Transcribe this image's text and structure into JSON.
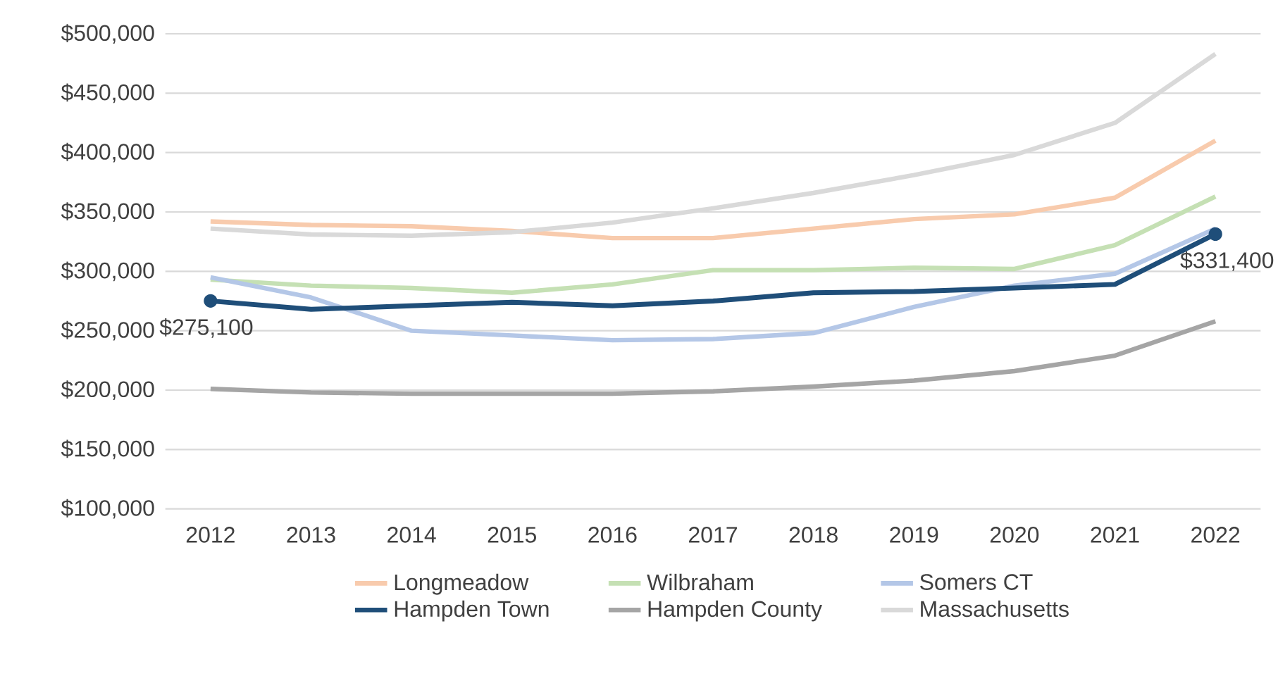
{
  "chart_data": {
    "type": "line",
    "categories": [
      "2012",
      "2013",
      "2014",
      "2015",
      "2016",
      "2017",
      "2018",
      "2019",
      "2020",
      "2021",
      "2022"
    ],
    "series": [
      {
        "name": "Longmeadow",
        "color": "#f8cbad",
        "values": [
          342000,
          339000,
          338000,
          334000,
          328000,
          328000,
          336000,
          344000,
          348000,
          362000,
          410000
        ]
      },
      {
        "name": "Wilbraham",
        "color": "#c5e0b4",
        "values": [
          293000,
          288000,
          286000,
          282000,
          289000,
          301000,
          301000,
          303000,
          302000,
          322000,
          363000
        ]
      },
      {
        "name": "Somers CT",
        "color": "#b4c7e7",
        "values": [
          295000,
          278000,
          250000,
          246000,
          242000,
          243000,
          248000,
          270000,
          288000,
          298000,
          336000
        ]
      },
      {
        "name": "Hampden Town",
        "color": "#1f4e79",
        "values": [
          275100,
          268000,
          271000,
          274000,
          271000,
          275000,
          282000,
          283000,
          286000,
          289000,
          331400
        ],
        "value_labels": [
          "$275,100",
          null,
          null,
          null,
          null,
          null,
          null,
          null,
          null,
          null,
          "$331,400"
        ]
      },
      {
        "name": "Hampden County",
        "color": "#a5a5a5",
        "values": [
          201000,
          198000,
          197000,
          197000,
          197000,
          199000,
          203000,
          208000,
          216000,
          229000,
          258000
        ]
      },
      {
        "name": "Massachusetts",
        "color": "#d9d9d9",
        "values": [
          336000,
          331000,
          330000,
          333000,
          341000,
          353000,
          366000,
          381000,
          398000,
          425000,
          483000
        ]
      }
    ],
    "ylim": [
      100000,
      500000
    ],
    "yticks": [
      {
        "value": 100000,
        "label": "$100,000"
      },
      {
        "value": 150000,
        "label": "$150,000"
      },
      {
        "value": 200000,
        "label": "$200,000"
      },
      {
        "value": 250000,
        "label": "$250,000"
      },
      {
        "value": 300000,
        "label": "$300,000"
      },
      {
        "value": 350000,
        "label": "$350,000"
      },
      {
        "value": 400000,
        "label": "$400,000"
      },
      {
        "value": 450000,
        "label": "$450,000"
      },
      {
        "value": 500000,
        "label": "$500,000"
      }
    ],
    "grid": "y",
    "legend": "bottom",
    "line_style": "solid"
  }
}
